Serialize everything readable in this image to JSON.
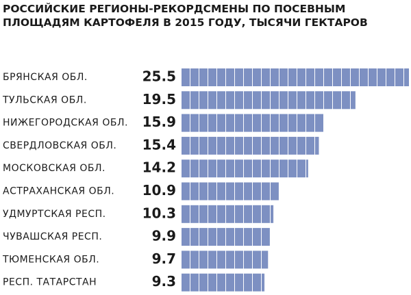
{
  "chart_data": {
    "type": "bar",
    "orientation": "horizontal",
    "title": [
      "РОССИЙСКИЕ РЕГИОНЫ-РЕКОРДСМЕНЫ ПО ПОСЕВНЫМ",
      "ПЛОЩАДЯМ КАРТОФЕЛЯ В 2015 ГОДУ, ТЫСЯЧИ ГЕКТАРОВ"
    ],
    "categories": [
      "БРЯНСКАЯ ОБЛ.",
      "ТУЛЬСКАЯ ОБЛ.",
      "НИЖЕГОРОДСКАЯ ОБЛ.",
      "СВЕРДЛОВСКАЯ ОБЛ.",
      "МОСКОВСКАЯ ОБЛ.",
      "АСТРАХАНСКАЯ ОБЛ.",
      "УДМУРТСКАЯ РЕСП.",
      "ЧУВАШСКАЯ РЕСП.",
      "ТЮМЕНСКАЯ ОБЛ.",
      "РЕСП. ТАТАРСТАН"
    ],
    "values": [
      25.5,
      19.5,
      15.9,
      15.4,
      14.2,
      10.9,
      10.3,
      9.9,
      9.7,
      9.3
    ],
    "color": "#7d90c2"
  }
}
